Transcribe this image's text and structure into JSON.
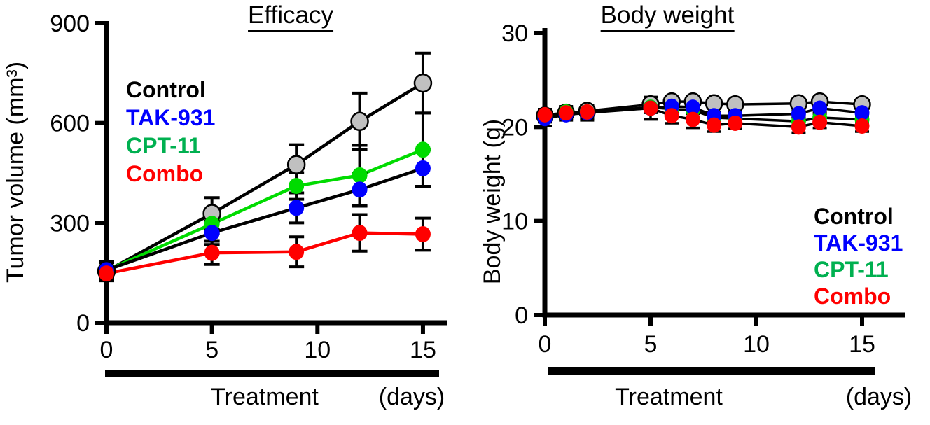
{
  "chart_data": [
    {
      "type": "line",
      "title": "Efficacy",
      "ylabel": "Tumor volume (mm³)",
      "xlabel": "(days)",
      "treatment_label": "Treatment",
      "x": [
        0,
        5,
        9,
        12,
        15
      ],
      "xticks": [
        0,
        5,
        10,
        15
      ],
      "yticks": [
        0,
        300,
        600,
        900
      ],
      "xlim": [
        0,
        16
      ],
      "ylim": [
        0,
        900
      ],
      "grid": false,
      "legend_position": "upper-left",
      "series": [
        {
          "name": "Control",
          "values": [
            155,
            328,
            475,
            605,
            720
          ],
          "errors": [
            25,
            48,
            60,
            85,
            90
          ],
          "marker_color": "#c0c0c0",
          "marker_outline": "#000000",
          "line_color": "#000000",
          "label_color": "#000000"
        },
        {
          "name": "TAK-931",
          "values": [
            158,
            270,
            345,
            400,
            464
          ],
          "errors": [
            25,
            35,
            45,
            50,
            55
          ],
          "marker_color": "#0000ff",
          "marker_outline": "none",
          "line_color": "#000000",
          "label_color": "#0000ff"
        },
        {
          "name": "CPT-11",
          "values": [
            157,
            297,
            411,
            443,
            520
          ],
          "errors": [
            25,
            30,
            40,
            90,
            110
          ],
          "marker_color": "#00db00",
          "marker_outline": "none",
          "line_color": "#00db00",
          "label_color": "#00b050"
        },
        {
          "name": "Combo",
          "values": [
            148,
            210,
            213,
            270,
            266
          ],
          "errors": [
            22,
            35,
            45,
            55,
            48
          ],
          "marker_color": "#ff0000",
          "marker_outline": "none",
          "line_color": "#ff0000",
          "label_color": "#ff0000"
        }
      ]
    },
    {
      "type": "line",
      "title": "Body weight",
      "ylabel": "Body weight (g)",
      "xlabel": "(days)",
      "treatment_label": "Treatment",
      "x": [
        0,
        1,
        2,
        5,
        6,
        7,
        8,
        9,
        12,
        13,
        15
      ],
      "xticks": [
        0,
        5,
        10,
        15
      ],
      "yticks": [
        0,
        10,
        20,
        30
      ],
      "xlim": [
        0,
        17
      ],
      "ylim": [
        0,
        30
      ],
      "grid": false,
      "legend_position": "lower-right",
      "series": [
        {
          "name": "Control",
          "values": [
            21.2,
            21.5,
            21.7,
            22.4,
            22.7,
            22.7,
            22.5,
            22.4,
            22.5,
            22.7,
            22.4
          ],
          "errors": [
            0.6,
            0.5,
            0.5,
            0.4,
            0.4,
            0.4,
            0.4,
            0.4,
            0.4,
            0.4,
            0.4
          ],
          "marker_color": "#c0c0c0",
          "marker_outline": "#000000",
          "line_color": "#000000",
          "label_color": "#000000"
        },
        {
          "name": "TAK-931",
          "values": [
            20.9,
            21.3,
            21.5,
            22.0,
            22.2,
            22.1,
            21.2,
            21.2,
            21.4,
            22.0,
            21.5
          ],
          "errors": [
            0.8,
            0.6,
            0.8,
            0.5,
            0.4,
            0.4,
            0.4,
            0.4,
            0.4,
            0.4,
            0.4
          ],
          "marker_color": "#0000ff",
          "marker_outline": "none",
          "line_color": "#000000",
          "label_color": "#0000ff"
        },
        {
          "name": "CPT-11",
          "values": [
            21.1,
            21.6,
            21.6,
            22.1,
            21.9,
            21.8,
            21.0,
            20.9,
            20.6,
            21.0,
            20.8
          ],
          "errors": [
            0.6,
            0.6,
            0.6,
            0.4,
            0.4,
            0.4,
            0.4,
            0.4,
            0.4,
            0.4,
            0.4
          ],
          "marker_color": "#00db00",
          "marker_outline": "none",
          "line_color": "#000000",
          "label_color": "#00b050"
        },
        {
          "name": "Combo",
          "values": [
            21.3,
            21.5,
            21.6,
            22.0,
            21.2,
            20.8,
            20.2,
            20.4,
            20.0,
            20.5,
            20.1
          ],
          "errors": [
            0.6,
            0.6,
            0.7,
            1.2,
            0.8,
            0.9,
            0.7,
            0.6,
            0.6,
            0.6,
            0.6
          ],
          "marker_color": "#ff0000",
          "marker_outline": "none",
          "line_color": "#000000",
          "label_color": "#ff0000"
        }
      ]
    }
  ]
}
